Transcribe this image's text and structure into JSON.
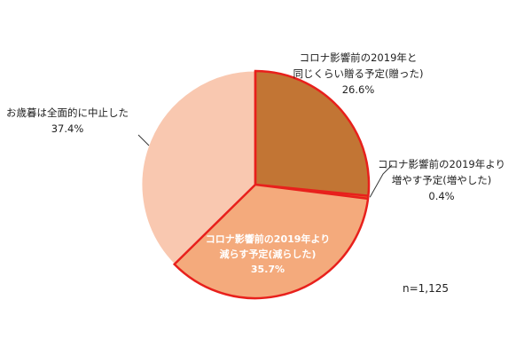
{
  "chart_data": {
    "type": "pie",
    "sample_note": "n=1,125",
    "slices": [
      {
        "line1": "コロナ影響前の2019年と",
        "line2": "同じくらい贈る予定(贈った)",
        "pct_label": "26.6%",
        "value": 26.6,
        "color": "#c27534"
      },
      {
        "line1": "コロナ影響前の2019年より",
        "line2": "増やす予定(増やした)",
        "pct_label": "0.4%",
        "value": 0.4,
        "color": "#e36c2d"
      },
      {
        "line1": "コロナ影響前の2019年より",
        "line2": "減らす予定(減らした)",
        "pct_label": "35.7%",
        "value": 35.7,
        "color": "#f4aa7c"
      },
      {
        "line1": "お歳暮は全面的に中止した",
        "line2": "",
        "pct_label": "37.4%",
        "value": 37.4,
        "color": "#f9c8b0"
      }
    ],
    "highlight_color": "#e8201c"
  }
}
